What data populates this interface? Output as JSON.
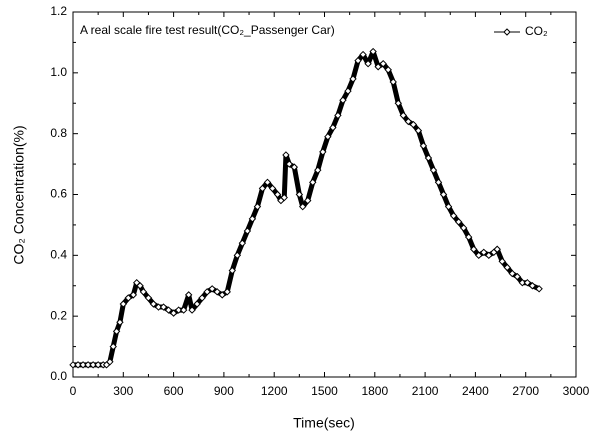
{
  "chart_data": {
    "type": "line",
    "title": "A real scale fire test result(CO₂_Passenger Car)",
    "xlabel": "Time(sec)",
    "ylabel": "CO₂ Concentration(%)",
    "x": [
      0,
      30,
      60,
      90,
      120,
      150,
      180,
      200,
      220,
      240,
      260,
      280,
      300,
      330,
      360,
      380,
      400,
      420,
      450,
      480,
      510,
      540,
      570,
      600,
      630,
      660,
      690,
      710,
      740,
      770,
      800,
      830,
      860,
      890,
      920,
      950,
      980,
      1010,
      1040,
      1070,
      1100,
      1130,
      1160,
      1190,
      1220,
      1240,
      1260,
      1270,
      1290,
      1320,
      1350,
      1370,
      1400,
      1430,
      1460,
      1490,
      1520,
      1550,
      1580,
      1610,
      1640,
      1670,
      1700,
      1730,
      1760,
      1790,
      1820,
      1850,
      1880,
      1910,
      1940,
      1970,
      2000,
      2030,
      2060,
      2090,
      2120,
      2150,
      2180,
      2210,
      2240,
      2270,
      2300,
      2330,
      2360,
      2390,
      2420,
      2450,
      2480,
      2510,
      2530,
      2560,
      2590,
      2620,
      2650,
      2680,
      2710,
      2740,
      2780
    ],
    "series": [
      {
        "name": "CO₂",
        "color": "#000000",
        "values": [
          0.04,
          0.04,
          0.04,
          0.04,
          0.04,
          0.04,
          0.04,
          0.04,
          0.05,
          0.1,
          0.15,
          0.18,
          0.24,
          0.26,
          0.27,
          0.31,
          0.3,
          0.28,
          0.26,
          0.24,
          0.23,
          0.23,
          0.22,
          0.21,
          0.22,
          0.22,
          0.27,
          0.22,
          0.24,
          0.26,
          0.28,
          0.29,
          0.28,
          0.27,
          0.28,
          0.35,
          0.4,
          0.44,
          0.48,
          0.52,
          0.56,
          0.62,
          0.64,
          0.62,
          0.6,
          0.58,
          0.59,
          0.73,
          0.7,
          0.69,
          0.6,
          0.56,
          0.58,
          0.64,
          0.68,
          0.74,
          0.79,
          0.82,
          0.86,
          0.91,
          0.94,
          0.98,
          1.04,
          1.06,
          1.03,
          1.07,
          1.02,
          1.03,
          1.01,
          0.97,
          0.9,
          0.86,
          0.84,
          0.83,
          0.81,
          0.76,
          0.72,
          0.68,
          0.64,
          0.6,
          0.56,
          0.53,
          0.51,
          0.49,
          0.46,
          0.42,
          0.4,
          0.41,
          0.4,
          0.41,
          0.42,
          0.38,
          0.36,
          0.34,
          0.33,
          0.31,
          0.31,
          0.3,
          0.29
        ]
      }
    ],
    "xlim": [
      0,
      3000
    ],
    "xticks": [
      0,
      300,
      600,
      900,
      1200,
      1500,
      1800,
      2100,
      2400,
      2700,
      3000
    ],
    "ylim": [
      0,
      1.2
    ],
    "yticks": [
      {
        "value": 0,
        "label": "0.0"
      },
      0.2,
      0.4,
      0.6,
      0.8,
      {
        "value": 1,
        "label": "1.0"
      },
      1.2
    ],
    "legend": "upper right",
    "marker": "diamond"
  }
}
